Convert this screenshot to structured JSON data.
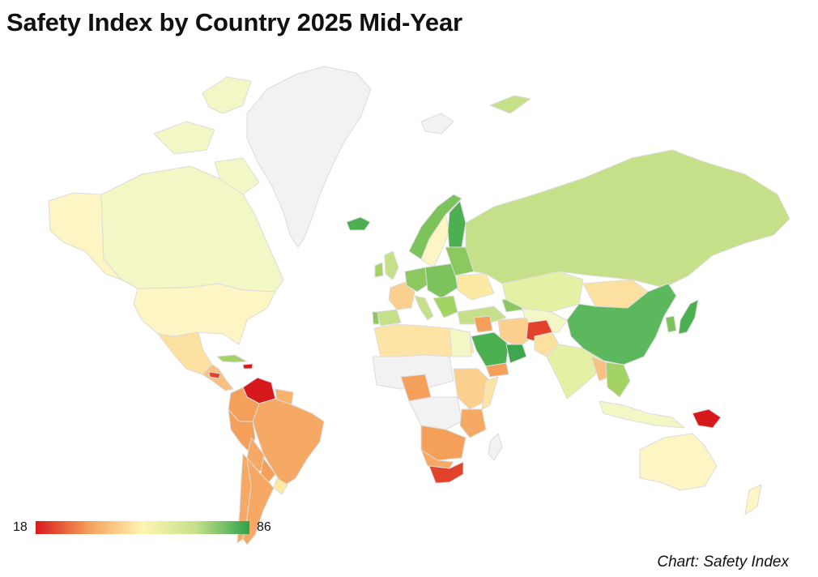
{
  "title": "Safety Index by Country 2025 Mid-Year",
  "legend": {
    "min": "18",
    "max": "86"
  },
  "credit": "Chart: Safety Index",
  "colors": {
    "scale": [
      "#d7191c",
      "#f4a05a",
      "#fff5b3",
      "#c6e08a",
      "#2ea24a"
    ],
    "no_data": "#f2f2f2",
    "border": "#dcdcdc"
  }
}
